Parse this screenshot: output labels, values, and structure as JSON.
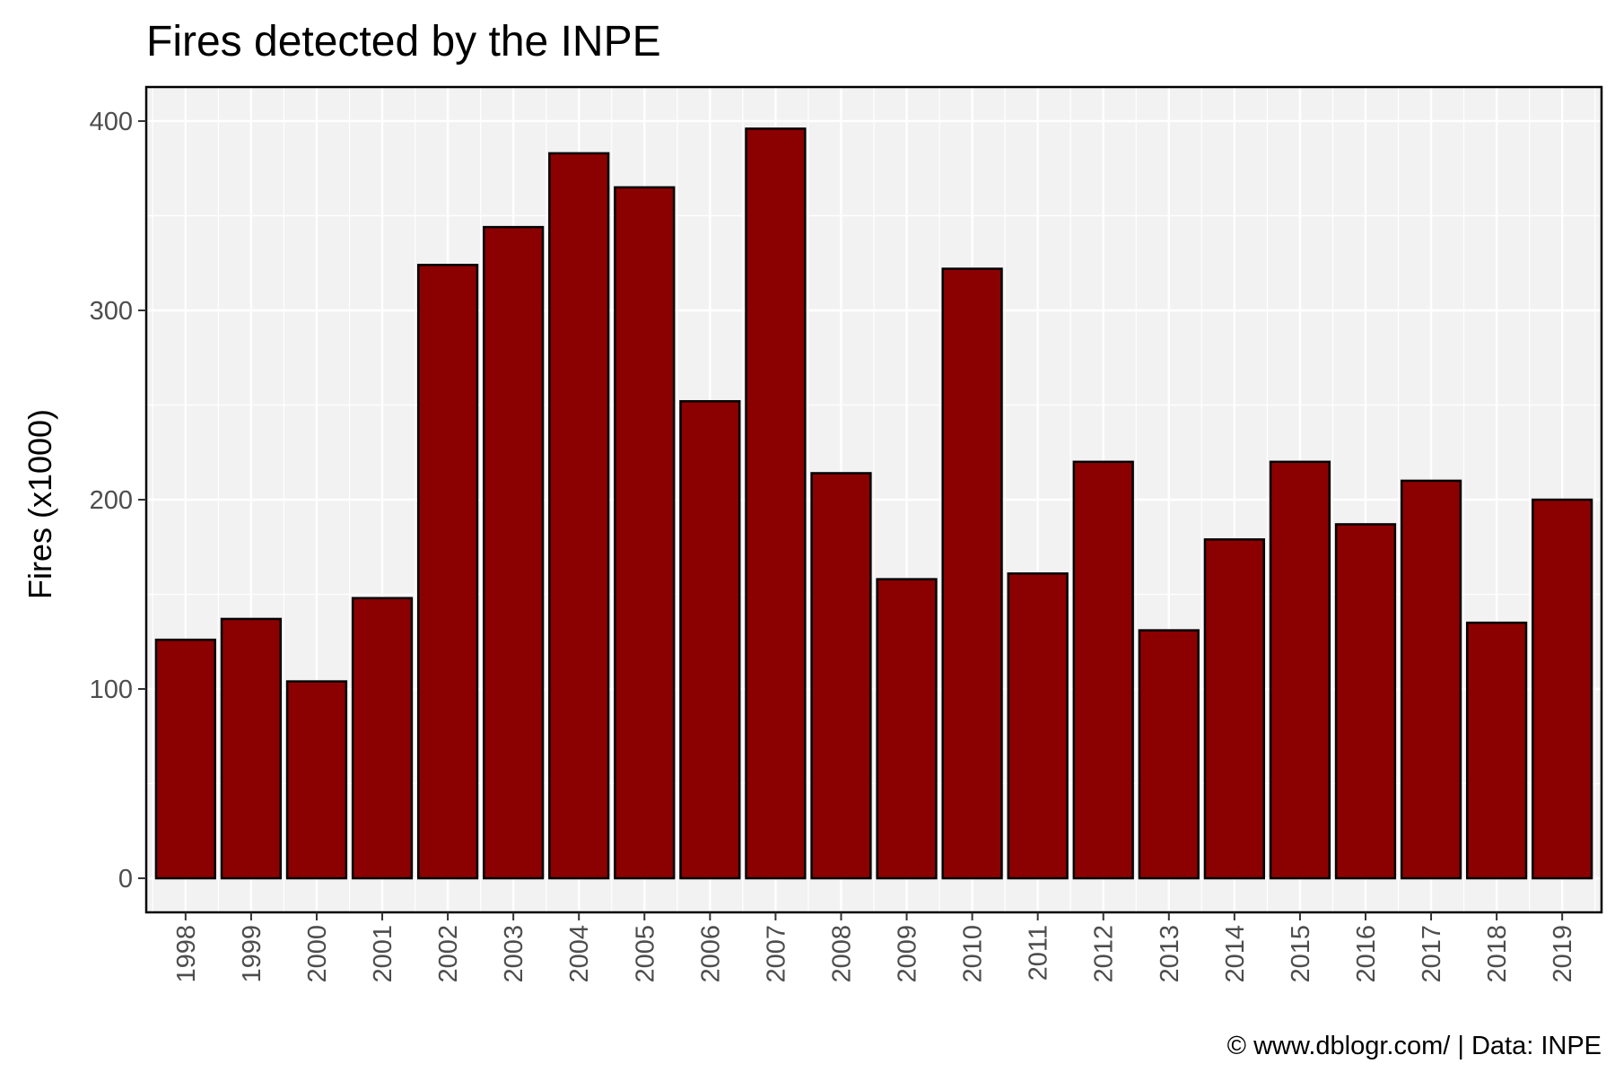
{
  "chart_data": {
    "type": "bar",
    "title": "Fires detected by the INPE",
    "xlabel": "",
    "ylabel": "Fires (x1000)",
    "caption": "© www.dblogr.com/  |  Data: INPE",
    "categories": [
      "1998",
      "1999",
      "2000",
      "2001",
      "2002",
      "2003",
      "2004",
      "2005",
      "2006",
      "2007",
      "2008",
      "2009",
      "2010",
      "2011",
      "2012",
      "2013",
      "2014",
      "2015",
      "2016",
      "2017",
      "2018",
      "2019"
    ],
    "values": [
      126,
      137,
      104,
      148,
      324,
      344,
      383,
      365,
      252,
      396,
      214,
      158,
      322,
      161,
      220,
      131,
      179,
      220,
      187,
      210,
      135,
      200
    ],
    "ylim": [
      -18,
      418
    ],
    "yticks": [
      0,
      100,
      200,
      300,
      400
    ],
    "yticks_minor": [
      50,
      150,
      250,
      350
    ],
    "grid": true,
    "legend": "none",
    "colors": {
      "bar_fill": "#8B0000",
      "bar_stroke": "#000000",
      "panel_bg": "#F2F2F2",
      "grid": "#FFFFFF",
      "tick_label": "#4D4D4D",
      "text": "#000000"
    }
  }
}
